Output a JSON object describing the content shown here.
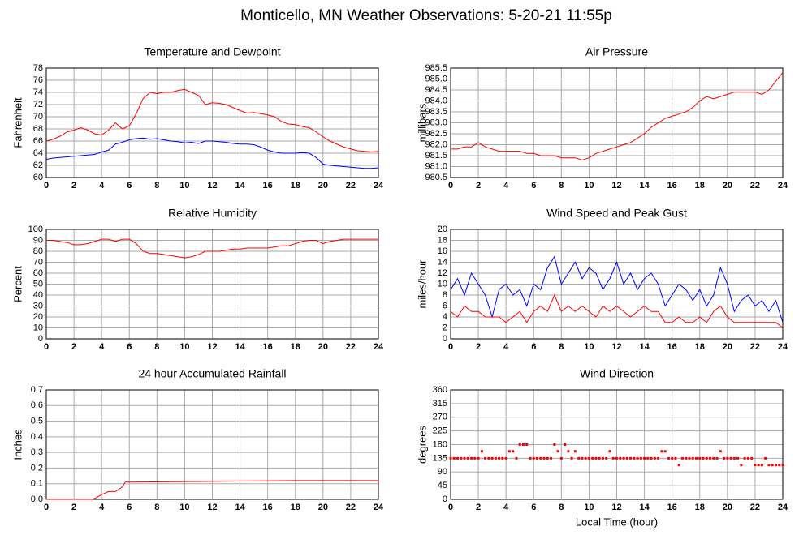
{
  "title": "Monticello, MN Weather Observations: 5-20-21 11:55p",
  "chart_data": [
    {
      "type": "line",
      "title": "Temperature and Dewpoint",
      "ylabel": "Fahrenheit",
      "x": [
        0,
        0.5,
        1,
        1.5,
        2,
        2.5,
        3,
        3.5,
        4,
        4.5,
        5,
        5.5,
        6,
        6.5,
        7,
        7.5,
        8,
        8.5,
        9,
        9.5,
        10,
        10.5,
        11,
        11.5,
        12,
        12.5,
        13,
        13.5,
        14,
        14.5,
        15,
        15.5,
        16,
        16.5,
        17,
        17.5,
        18,
        18.5,
        19,
        19.5,
        20,
        20.5,
        21,
        21.5,
        22,
        22.5,
        23,
        23.5,
        24
      ],
      "series": [
        {
          "color": "#ff0000",
          "values": [
            66,
            66.3,
            66.8,
            67.5,
            67.8,
            68.2,
            67.8,
            67.2,
            67,
            67.8,
            69,
            68,
            68.5,
            70.5,
            73,
            74,
            73.8,
            74,
            74,
            74.3,
            74.5,
            74,
            73.5,
            72,
            72.3,
            72.2,
            72,
            71.5,
            71,
            70.6,
            70.7,
            70.5,
            70.3,
            70,
            69.2,
            68.8,
            68.7,
            68.4,
            68.2,
            67.5,
            66.7,
            66,
            65.5,
            65,
            64.7,
            64.4,
            64.3,
            64.2,
            64.3
          ]
        },
        {
          "color": "#0000ff",
          "values": [
            63,
            63.2,
            63.3,
            63.4,
            63.5,
            63.6,
            63.7,
            63.8,
            64.2,
            64.5,
            65.5,
            65.8,
            66.2,
            66.4,
            66.5,
            66.3,
            66.4,
            66.2,
            66,
            65.9,
            65.7,
            65.8,
            65.6,
            66,
            66,
            65.9,
            65.8,
            65.6,
            65.5,
            65.5,
            65.4,
            65,
            64.5,
            64.2,
            64,
            64,
            64,
            64.1,
            64,
            63.3,
            62.2,
            62,
            61.9,
            61.8,
            61.7,
            61.6,
            61.5,
            61.5,
            61.6
          ]
        }
      ],
      "xlim": [
        0,
        24
      ],
      "xticks": [
        0,
        2,
        4,
        6,
        8,
        10,
        12,
        14,
        16,
        18,
        20,
        22,
        24
      ],
      "ylim": [
        60,
        78
      ],
      "yticks": [
        60,
        62,
        64,
        66,
        68,
        70,
        72,
        74,
        76,
        78
      ],
      "grid": true
    },
    {
      "type": "line",
      "title": "Air Pressure",
      "ylabel": "millibars",
      "x": [
        0,
        0.5,
        1,
        1.5,
        2,
        2.5,
        3,
        3.5,
        4,
        4.5,
        5,
        5.5,
        6,
        6.5,
        7,
        7.5,
        8,
        8.5,
        9,
        9.5,
        10,
        10.5,
        11,
        11.5,
        12,
        12.5,
        13,
        13.5,
        14,
        14.5,
        15,
        15.5,
        16,
        16.5,
        17,
        17.5,
        18,
        18.5,
        19,
        19.5,
        20,
        20.5,
        21,
        21.5,
        22,
        22.5,
        23,
        23.5,
        24
      ],
      "series": [
        {
          "color": "#ff0000",
          "values": [
            981.8,
            981.8,
            981.9,
            981.9,
            982.1,
            981.9,
            981.8,
            981.7,
            981.7,
            981.7,
            981.7,
            981.6,
            981.6,
            981.5,
            981.5,
            981.5,
            981.4,
            981.4,
            981.4,
            981.3,
            981.4,
            981.6,
            981.7,
            981.8,
            981.9,
            982.0,
            982.1,
            982.3,
            982.5,
            982.8,
            983.0,
            983.2,
            983.3,
            983.4,
            983.5,
            983.7,
            984.0,
            984.2,
            984.1,
            984.2,
            984.3,
            984.4,
            984.4,
            984.4,
            984.4,
            984.3,
            984.5,
            984.9,
            985.3
          ]
        }
      ],
      "xlim": [
        0,
        24
      ],
      "xticks": [
        0,
        2,
        4,
        6,
        8,
        10,
        12,
        14,
        16,
        18,
        20,
        22,
        24
      ],
      "ylim": [
        980.5,
        985.5
      ],
      "yticks": [
        980.5,
        {
          "value": 981,
          "label": "981.0"
        },
        981.5,
        {
          "value": 982,
          "label": "982.0"
        },
        982.5,
        {
          "value": 983,
          "label": "983.0"
        },
        983.5,
        {
          "value": 984,
          "label": "984.0"
        },
        984.5,
        {
          "value": 985,
          "label": "985.0"
        },
        985.5
      ],
      "grid": true
    },
    {
      "type": "line",
      "title": "Relative Humidity",
      "ylabel": "Percent",
      "x": [
        0,
        0.5,
        1,
        1.5,
        2,
        2.5,
        3,
        3.5,
        4,
        4.5,
        5,
        5.5,
        6,
        6.5,
        7,
        7.5,
        8,
        8.5,
        9,
        9.5,
        10,
        10.5,
        11,
        11.5,
        12,
        12.5,
        13,
        13.5,
        14,
        14.5,
        15,
        15.5,
        16,
        16.5,
        17,
        17.5,
        18,
        18.5,
        19,
        19.5,
        20,
        20.5,
        21,
        21.5,
        22,
        22.5,
        23,
        23.5,
        24
      ],
      "series": [
        {
          "color": "#ff0000",
          "values": [
            90,
            90,
            89,
            88,
            86,
            86,
            87,
            89,
            91,
            91,
            89,
            91,
            91,
            87,
            80,
            78,
            78,
            77,
            76,
            75,
            74,
            75,
            77,
            80,
            80,
            80,
            81,
            82,
            82,
            83,
            83,
            83,
            83,
            84,
            85,
            85,
            87,
            89,
            90,
            90,
            87,
            89,
            90,
            91,
            91,
            91,
            91,
            91,
            91
          ]
        }
      ],
      "xlim": [
        0,
        24
      ],
      "xticks": [
        0,
        2,
        4,
        6,
        8,
        10,
        12,
        14,
        16,
        18,
        20,
        22,
        24
      ],
      "ylim": [
        0,
        100
      ],
      "yticks": [
        0,
        10,
        20,
        30,
        40,
        50,
        60,
        70,
        80,
        90,
        100
      ],
      "grid": true
    },
    {
      "type": "line",
      "title": "Wind Speed and Peak Gust",
      "ylabel": "miles/hour",
      "x": [
        0,
        0.5,
        1,
        1.5,
        2,
        2.5,
        3,
        3.5,
        4,
        4.5,
        5,
        5.5,
        6,
        6.5,
        7,
        7.5,
        8,
        8.5,
        9,
        9.5,
        10,
        10.5,
        11,
        11.5,
        12,
        12.5,
        13,
        13.5,
        14,
        14.5,
        15,
        15.5,
        16,
        16.5,
        17,
        17.5,
        18,
        18.5,
        19,
        19.5,
        20,
        20.5,
        21,
        21.5,
        22,
        22.5,
        23,
        23.5,
        24
      ],
      "series": [
        {
          "color": "#0000ff",
          "values": [
            9,
            11,
            8,
            12,
            10,
            8,
            4,
            9,
            10,
            8,
            9,
            6,
            10,
            9,
            13,
            15,
            10,
            12,
            14,
            11,
            13,
            12,
            9,
            11,
            14,
            10,
            12,
            9,
            11,
            12,
            10,
            6,
            8,
            10,
            9,
            7,
            9,
            6,
            8,
            13,
            10,
            5,
            7,
            8,
            6,
            7,
            5,
            7,
            3
          ]
        },
        {
          "color": "#ff0000",
          "values": [
            5,
            4,
            6,
            5,
            5,
            4,
            4,
            4,
            3,
            4,
            5,
            3,
            5,
            6,
            5,
            8,
            5,
            6,
            5,
            6,
            5,
            4,
            6,
            5,
            6,
            5,
            4,
            5,
            6,
            5,
            5,
            3,
            3,
            4,
            3,
            3,
            4,
            3,
            5,
            6,
            4,
            3,
            3,
            3,
            3,
            3,
            3,
            3,
            2
          ]
        }
      ],
      "xlim": [
        0,
        24
      ],
      "xticks": [
        0,
        2,
        4,
        6,
        8,
        10,
        12,
        14,
        16,
        18,
        20,
        22,
        24
      ],
      "ylim": [
        0,
        20
      ],
      "yticks": [
        0,
        2,
        4,
        6,
        8,
        10,
        12,
        14,
        16,
        18,
        20
      ],
      "grid": true
    },
    {
      "type": "line",
      "title": "24 hour Accumulated Rainfall",
      "ylabel": "Inches",
      "x": [
        0,
        3.3,
        3.6,
        4,
        4.5,
        5,
        5.5,
        5.7,
        6,
        18,
        24
      ],
      "series": [
        {
          "color": "#ff0000",
          "values": [
            0,
            0,
            0.01,
            0.03,
            0.05,
            0.05,
            0.08,
            0.11,
            0.11,
            0.12,
            0.12
          ]
        }
      ],
      "xlim": [
        0,
        24
      ],
      "xticks": [
        0,
        2,
        4,
        6,
        8,
        10,
        12,
        14,
        16,
        18,
        20,
        22,
        24
      ],
      "ylim": [
        0,
        0.7
      ],
      "yticks": [
        {
          "value": 0,
          "label": "0.0"
        },
        0.1,
        0.2,
        0.3,
        0.4,
        0.5,
        0.6,
        0.7
      ],
      "grid": true
    },
    {
      "type": "scatter",
      "title": "Wind Direction",
      "ylabel": "degrees",
      "xlabel": "Local Time (hour)",
      "x": [
        0,
        0.25,
        0.5,
        0.75,
        1,
        1.25,
        1.5,
        1.75,
        2,
        2.25,
        2.5,
        2.75,
        3,
        3.25,
        3.5,
        3.75,
        4,
        4.25,
        4.5,
        4.75,
        5,
        5.25,
        5.5,
        5.75,
        6,
        6.25,
        6.5,
        6.75,
        7,
        7.25,
        7.5,
        7.75,
        8,
        8.25,
        8.5,
        8.75,
        9,
        9.25,
        9.5,
        9.75,
        10,
        10.25,
        10.5,
        10.75,
        11,
        11.25,
        11.5,
        11.75,
        12,
        12.25,
        12.5,
        12.75,
        13,
        13.25,
        13.5,
        13.75,
        14,
        14.25,
        14.5,
        14.75,
        15,
        15.25,
        15.5,
        15.75,
        16,
        16.25,
        16.5,
        16.75,
        17,
        17.25,
        17.5,
        17.75,
        18,
        18.25,
        18.5,
        18.75,
        19,
        19.25,
        19.5,
        19.75,
        20,
        20.25,
        20.5,
        20.75,
        21,
        21.25,
        21.5,
        21.75,
        22,
        22.25,
        22.5,
        22.75,
        23,
        23.25,
        23.5,
        23.75,
        24
      ],
      "series": [
        {
          "color": "#ff0000",
          "values": [
            135,
            135,
            135,
            135,
            135,
            135,
            135,
            135,
            135,
            158,
            135,
            135,
            135,
            135,
            135,
            135,
            135,
            158,
            158,
            135,
            180,
            180,
            180,
            135,
            135,
            135,
            135,
            135,
            135,
            135,
            180,
            158,
            135,
            180,
            158,
            135,
            158,
            135,
            135,
            135,
            135,
            135,
            135,
            135,
            135,
            135,
            158,
            135,
            135,
            135,
            135,
            135,
            135,
            135,
            135,
            135,
            135,
            135,
            135,
            135,
            135,
            158,
            158,
            135,
            135,
            135,
            113,
            135,
            135,
            135,
            135,
            135,
            135,
            135,
            135,
            135,
            135,
            135,
            158,
            135,
            135,
            135,
            135,
            135,
            113,
            135,
            135,
            135,
            113,
            113,
            113,
            135,
            113,
            113,
            113,
            113,
            113
          ]
        }
      ],
      "xlim": [
        0,
        24
      ],
      "xticks": [
        0,
        2,
        4,
        6,
        8,
        10,
        12,
        14,
        16,
        18,
        20,
        22,
        24
      ],
      "ylim": [
        0,
        360
      ],
      "yticks": [
        0,
        45,
        90,
        135,
        180,
        225,
        270,
        315,
        360
      ],
      "grid": true
    }
  ]
}
